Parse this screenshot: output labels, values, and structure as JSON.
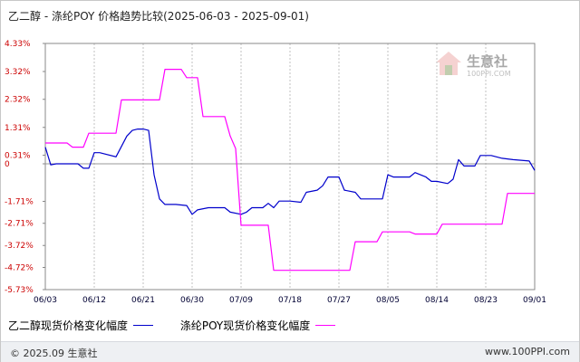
{
  "title": "乙二醇 - 涤纶POY 价格趋势比较(2025-06-03 - 2025-09-01)",
  "watermark": {
    "text": "生意社",
    "url": "100PPI.COM"
  },
  "footer": {
    "left": "© 2025.09 生意社",
    "right": "www.100PPI.com"
  },
  "colors": {
    "series1": "#0000cc",
    "series2": "#ff00ff",
    "axis": "#888888",
    "ticklabel_y": "#cc0000",
    "ticklabel_x": "#000033",
    "grid": "#c0c0c0"
  },
  "chart_data": {
    "type": "line",
    "title": "乙二醇 - 涤纶POY 价格趋势比较(2025-06-03 - 2025-09-01)",
    "xlabel": "",
    "ylabel": "",
    "x_ticks": [
      "06/03",
      "06/12",
      "06/21",
      "06/30",
      "07/09",
      "07/18",
      "07/27",
      "08/05",
      "08/14",
      "08/23",
      "09/01"
    ],
    "y_ticks": [
      4.33,
      3.32,
      2.32,
      1.31,
      0.31,
      0,
      -1.71,
      -2.71,
      -3.72,
      -4.72,
      -5.73
    ],
    "y_tick_labels": [
      "4.33%",
      "3.32%",
      "2.32%",
      "1.31%",
      "0.31%",
      "0",
      "-1.71%",
      "-2.71%",
      "-3.72%",
      "-4.72%",
      "-5.73%"
    ],
    "ylim": [
      -5.73,
      4.33
    ],
    "grid": "vertical dashed",
    "legend": "bottom",
    "series": [
      {
        "name": "乙二醇现货价格变化幅度",
        "points": [
          [
            "06/03",
            0.6
          ],
          [
            "06/04",
            -0.05
          ],
          [
            "06/05",
            0.0
          ],
          [
            "06/09",
            0.0
          ],
          [
            "06/10",
            -0.2
          ],
          [
            "06/11",
            -0.2
          ],
          [
            "06/12",
            0.4
          ],
          [
            "06/13",
            0.4
          ],
          [
            "06/16",
            0.25
          ],
          [
            "06/18",
            1.0
          ],
          [
            "06/19",
            1.2
          ],
          [
            "06/20",
            1.25
          ],
          [
            "06/21",
            1.25
          ],
          [
            "06/22",
            1.2
          ],
          [
            "06/23",
            -0.5
          ],
          [
            "06/24",
            -1.6
          ],
          [
            "06/25",
            -1.85
          ],
          [
            "06/27",
            -1.85
          ],
          [
            "06/29",
            -1.9
          ],
          [
            "06/30",
            -2.3
          ],
          [
            "07/01",
            -2.1
          ],
          [
            "07/03",
            -2.0
          ],
          [
            "07/06",
            -2.0
          ],
          [
            "07/07",
            -2.2
          ],
          [
            "07/09",
            -2.3
          ],
          [
            "07/10",
            -2.2
          ],
          [
            "07/11",
            -2.0
          ],
          [
            "07/13",
            -2.0
          ],
          [
            "07/14",
            -1.8
          ],
          [
            "07/15",
            -2.0
          ],
          [
            "07/16",
            -1.7
          ],
          [
            "07/18",
            -1.7
          ],
          [
            "07/20",
            -1.75
          ],
          [
            "07/21",
            -1.3
          ],
          [
            "07/23",
            -1.2
          ],
          [
            "07/24",
            -1.0
          ],
          [
            "07/25",
            -0.6
          ],
          [
            "07/27",
            -0.6
          ],
          [
            "07/28",
            -1.2
          ],
          [
            "07/30",
            -1.3
          ],
          [
            "07/31",
            -1.6
          ],
          [
            "08/03",
            -1.6
          ],
          [
            "08/04",
            -1.6
          ],
          [
            "08/05",
            -0.5
          ],
          [
            "08/06",
            -0.6
          ],
          [
            "08/09",
            -0.6
          ],
          [
            "08/10",
            -0.4
          ],
          [
            "08/12",
            -0.6
          ],
          [
            "08/13",
            -0.8
          ],
          [
            "08/14",
            -0.8
          ],
          [
            "08/16",
            -0.9
          ],
          [
            "08/17",
            -0.7
          ],
          [
            "08/18",
            0.15
          ],
          [
            "08/19",
            -0.1
          ],
          [
            "08/21",
            -0.1
          ],
          [
            "08/22",
            0.3
          ],
          [
            "08/24",
            0.3
          ],
          [
            "08/26",
            0.2
          ],
          [
            "08/28",
            0.15
          ],
          [
            "08/31",
            0.1
          ],
          [
            "09/01",
            -0.3
          ]
        ]
      },
      {
        "name": "涤纶POY现货价格变化幅度",
        "points": [
          [
            "06/03",
            0.75
          ],
          [
            "06/04",
            0.75
          ],
          [
            "06/07",
            0.75
          ],
          [
            "06/08",
            0.6
          ],
          [
            "06/10",
            0.6
          ],
          [
            "06/11",
            1.1
          ],
          [
            "06/14",
            1.1
          ],
          [
            "06/16",
            1.1
          ],
          [
            "06/17",
            2.3
          ],
          [
            "06/19",
            2.3
          ],
          [
            "06/21",
            2.3
          ],
          [
            "06/24",
            2.3
          ],
          [
            "06/25",
            3.4
          ],
          [
            "06/28",
            3.4
          ],
          [
            "06/29",
            3.1
          ],
          [
            "07/01",
            3.1
          ],
          [
            "07/02",
            1.7
          ],
          [
            "07/05",
            1.7
          ],
          [
            "07/06",
            1.7
          ],
          [
            "07/07",
            1.0
          ],
          [
            "07/08",
            0.55
          ],
          [
            "07/09",
            -2.8
          ],
          [
            "07/10",
            -2.8
          ],
          [
            "07/14",
            -2.8
          ],
          [
            "07/15",
            -4.85
          ],
          [
            "07/20",
            -4.85
          ],
          [
            "07/25",
            -4.85
          ],
          [
            "07/26",
            -4.85
          ],
          [
            "07/29",
            -4.85
          ],
          [
            "07/30",
            -3.55
          ],
          [
            "08/03",
            -3.55
          ],
          [
            "08/04",
            -3.1
          ],
          [
            "08/09",
            -3.1
          ],
          [
            "08/10",
            -3.2
          ],
          [
            "08/14",
            -3.2
          ],
          [
            "08/15",
            -2.75
          ],
          [
            "08/23",
            -2.75
          ],
          [
            "08/26",
            -2.75
          ],
          [
            "08/27",
            -1.35
          ],
          [
            "09/01",
            -1.35
          ]
        ]
      }
    ]
  }
}
